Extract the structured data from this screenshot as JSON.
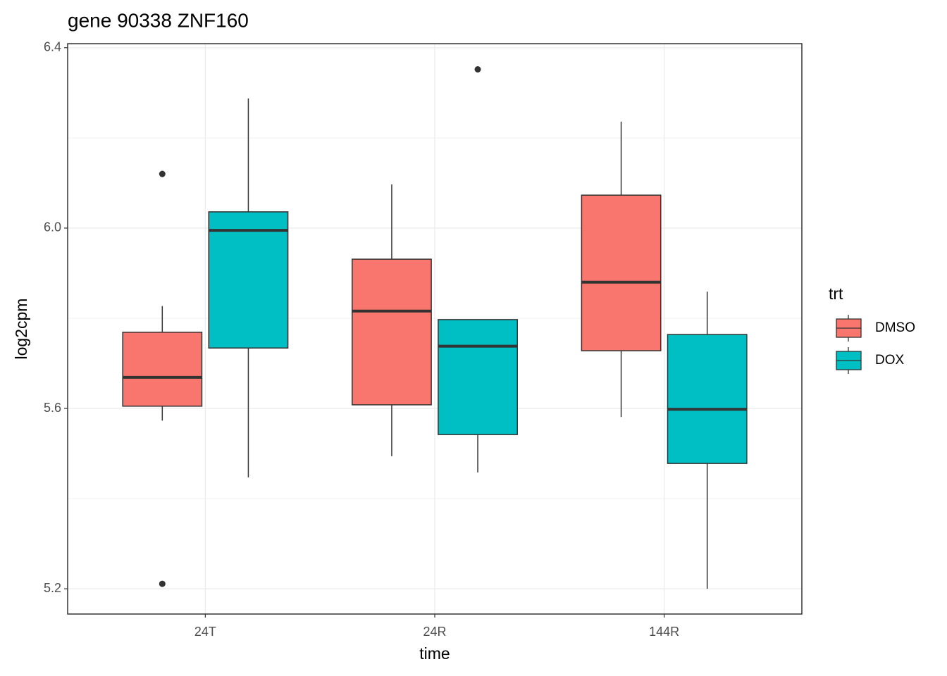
{
  "chart_data": {
    "type": "boxplot",
    "title": "gene 90338 ZNF160",
    "x_label": "time",
    "y_label": "log2cpm",
    "categories": [
      "24T",
      "24R",
      "144R"
    ],
    "legend_title": "trt",
    "series": [
      {
        "name": "DMSO",
        "color": "#F8766D",
        "whisker_low": [
          5.573,
          5.494,
          5.581
        ],
        "q1": [
          5.605,
          5.608,
          5.728
        ],
        "median": [
          5.669,
          5.816,
          5.88
        ],
        "q3": [
          5.769,
          5.931,
          6.073
        ],
        "whisker_high": [
          5.827,
          6.097,
          6.236
        ],
        "outliers": [
          [
            6.12,
            5.211
          ],
          [],
          []
        ]
      },
      {
        "name": "DOX",
        "color": "#00BFC4",
        "whisker_low": [
          5.447,
          5.458,
          5.2
        ],
        "q1": [
          5.734,
          5.542,
          5.478
        ],
        "median": [
          5.995,
          5.738,
          5.598
        ],
        "q3": [
          6.036,
          5.797,
          5.764
        ],
        "whisker_high": [
          6.2875,
          5.797,
          5.859
        ],
        "outliers": [
          [],
          [
            6.352
          ],
          []
        ]
      }
    ],
    "ylim": [
      5.144,
      6.409
    ],
    "yticks": [
      5.2,
      5.6,
      {
        "value": 6,
        "label": "6.0"
      },
      6.4
    ],
    "y_minor_grid": [
      5.4,
      5.8,
      6.2
    ],
    "grid": true
  }
}
